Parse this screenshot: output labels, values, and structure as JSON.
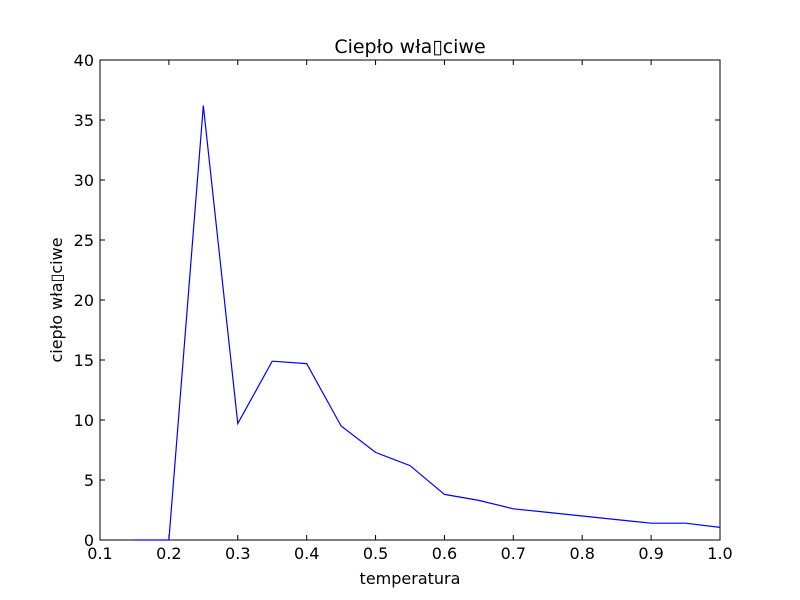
{
  "chart_data": {
    "type": "line",
    "title": "Ciepło wła▯ciwe",
    "xlabel": "temperatura",
    "ylabel": "ciepło wła▯ciwe",
    "xlim": [
      0.1,
      1.0
    ],
    "ylim": [
      0,
      40
    ],
    "x_ticks": [
      "0.1",
      "0.2",
      "0.3",
      "0.4",
      "0.5",
      "0.6",
      "0.7",
      "0.8",
      "0.9",
      "1.0"
    ],
    "y_ticks": [
      "0",
      "5",
      "10",
      "15",
      "20",
      "25",
      "30",
      "35",
      "40"
    ],
    "grid": false,
    "series": [
      {
        "color": "#0000ff",
        "x": [
          0.15,
          0.2,
          0.25,
          0.3,
          0.35,
          0.4,
          0.45,
          0.5,
          0.55,
          0.6,
          0.65,
          0.7,
          0.75,
          0.8,
          0.85,
          0.9,
          0.95,
          1.0
        ],
        "y": [
          0.0,
          0.0,
          36.2,
          9.7,
          14.9,
          14.7,
          9.5,
          7.3,
          6.2,
          3.8,
          3.3,
          2.6,
          2.3,
          2.0,
          1.7,
          1.4,
          1.4,
          1.05
        ]
      }
    ]
  }
}
